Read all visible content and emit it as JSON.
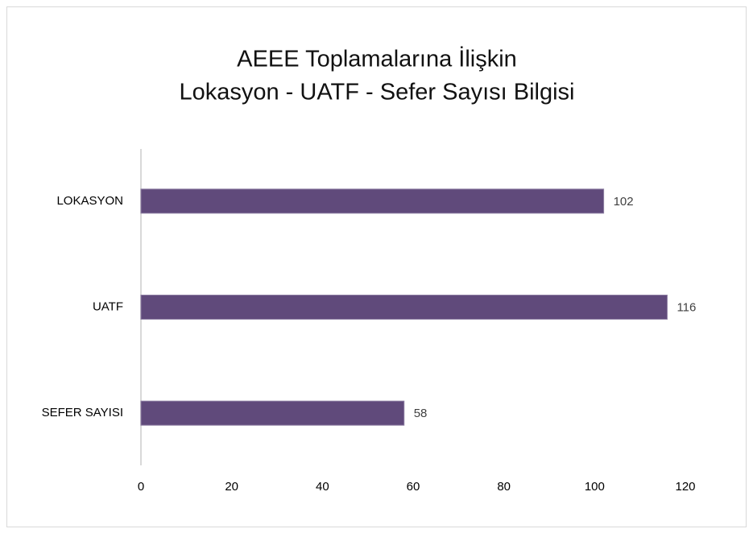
{
  "chart_data": {
    "type": "bar",
    "orientation": "horizontal",
    "title": [
      "AEEE Toplamalarına İlişkin",
      "Lokasyon - UATF - Sefer Sayısı Bilgisi"
    ],
    "categories": [
      "LOKASYON",
      "UATF",
      "SEFER SAYISI"
    ],
    "values": [
      102,
      116,
      58
    ],
    "color": "#604a7b",
    "xlim": [
      0,
      120
    ],
    "xticks": [
      0,
      20,
      40,
      60,
      80,
      100,
      120
    ],
    "grid": false
  }
}
